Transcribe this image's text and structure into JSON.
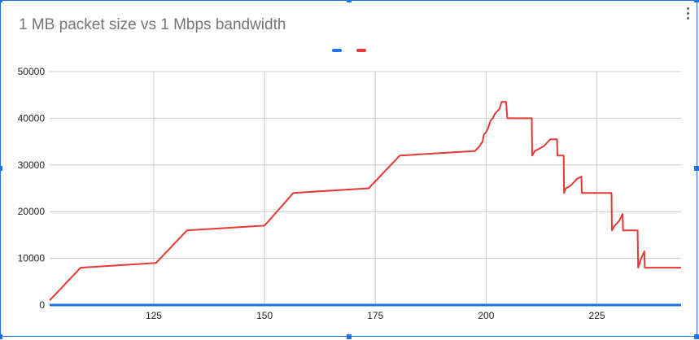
{
  "chart_data": {
    "type": "line",
    "title": "1 MB packet size vs 1 Mbps bandwidth",
    "xlabel": "",
    "ylabel": "",
    "xlim": [
      101.5,
      244
    ],
    "ylim": [
      0,
      50000
    ],
    "x_ticks": [
      125,
      150,
      175,
      200,
      225
    ],
    "y_ticks": [
      0,
      10000,
      20000,
      30000,
      40000,
      50000
    ],
    "grid": true,
    "legend_position": "top",
    "series": [
      {
        "color": "#1a73e8",
        "x": [
          101.5,
          244
        ],
        "y": [
          0,
          0
        ]
      },
      {
        "color": "#e53935",
        "x": [
          101.5,
          108.5,
          125.5,
          132.5,
          150,
          156.5,
          173.5,
          180.5,
          197.5,
          198.5,
          199.2,
          199.5,
          200,
          200.5,
          201,
          201.5,
          202,
          202.5,
          203,
          203.5,
          204,
          204.5,
          204.8,
          205.5,
          205.8,
          210.3,
          210.4,
          211,
          212,
          213,
          214,
          214.5,
          215,
          216,
          216.1,
          217.5,
          217.6,
          218,
          219,
          220,
          220.5,
          221.5,
          221.6,
          228.3,
          228.4,
          229,
          230,
          230.8,
          230.9,
          234.2,
          234.3,
          235,
          235.7,
          235.8,
          238,
          244
        ],
        "y": [
          1000,
          8000,
          9000,
          16000,
          17000,
          24000,
          25000,
          32000,
          33000,
          34000,
          35000,
          36500,
          37000,
          38000,
          39500,
          40000,
          41000,
          41500,
          42000,
          43500,
          43500,
          43500,
          40000,
          40000,
          40000,
          40000,
          32000,
          33000,
          33500,
          34000,
          35000,
          35500,
          35500,
          35500,
          32000,
          32000,
          24000,
          25000,
          25500,
          26500,
          27000,
          27500,
          24000,
          24000,
          16000,
          17000,
          18000,
          19500,
          16000,
          16000,
          8000,
          10000,
          11500,
          8000,
          8000,
          8000
        ]
      }
    ]
  }
}
